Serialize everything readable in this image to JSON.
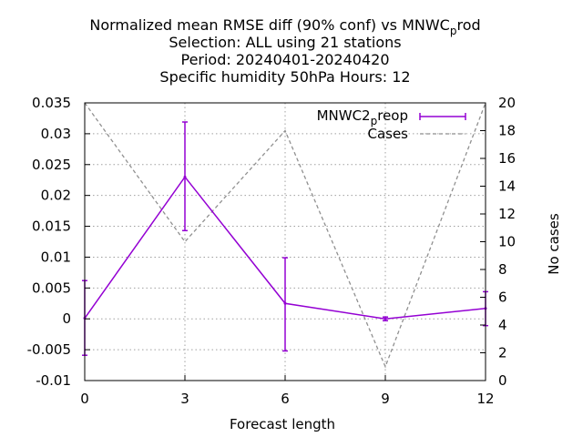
{
  "chart_data": {
    "type": "line",
    "title_lines": [
      "Normalized mean RMSE diff (90% conf) vs MNWC_prod",
      "Selection: ALL using    21 stations",
      "Period: 20240401-20240420",
      "Specific humidity 50hPa   Hours:  12"
    ],
    "xlabel": "Forecast length",
    "ylabel": "",
    "y2label": "No cases",
    "x": [
      0,
      3,
      6,
      9,
      12
    ],
    "xlim": [
      0,
      12
    ],
    "ylim": [
      -0.01,
      0.035
    ],
    "y2lim": [
      0,
      20
    ],
    "xticks": [
      "0",
      "3",
      "6",
      "9",
      "12"
    ],
    "yticks": [
      "-0.01",
      "-0.005",
      "0",
      "0.005",
      "0.01",
      "0.015",
      "0.02",
      "0.025",
      "0.03",
      "0.035"
    ],
    "y2ticks": [
      "0",
      "2",
      "4",
      "6",
      "8",
      "10",
      "12",
      "14",
      "16",
      "18",
      "20"
    ],
    "grid": true,
    "legend_position": "top-right",
    "series": [
      {
        "name": "MNWC2_preop",
        "axis": "y",
        "style": "line-errorbars",
        "color": "#9400d3",
        "values": [
          0.0001,
          0.023,
          0.0025,
          0.0,
          0.0017
        ],
        "error_low": [
          -0.0059,
          0.0143,
          -0.0052,
          -0.0003,
          -0.0011
        ],
        "error_high": [
          0.0062,
          0.0319,
          0.0099,
          0.0003,
          0.0044
        ]
      },
      {
        "name": "Cases",
        "axis": "y2",
        "style": "dashed",
        "color": "#909090",
        "values": [
          20,
          10,
          18,
          1,
          20
        ]
      }
    ]
  }
}
